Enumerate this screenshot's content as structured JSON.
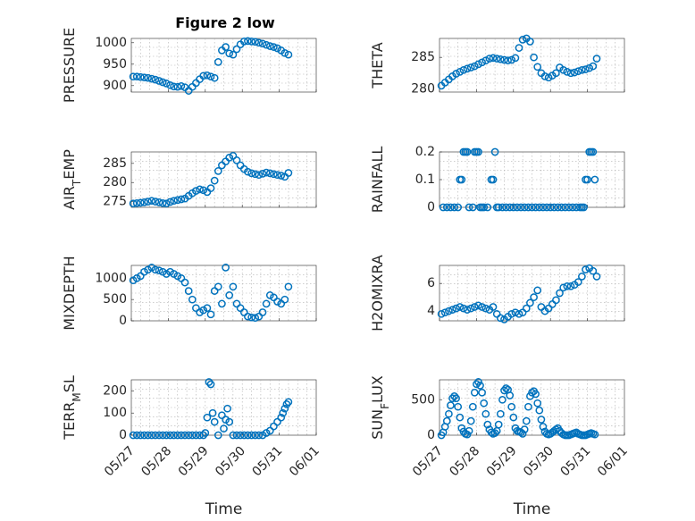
{
  "figure_title": "Figure 2 low",
  "colors": {
    "marker": "#0072BD",
    "axes": "#262626",
    "grid": "#b0b0b0"
  },
  "chart_data": [
    {
      "type": "scatter",
      "ylabel": "PRESSURE",
      "ylim": [
        885,
        1010
      ],
      "yticks": [
        900,
        950,
        1000
      ],
      "ytick_labels": [
        "900",
        "950",
        "1000"
      ],
      "xlim": [
        0,
        5
      ],
      "xtick_labels": [],
      "xlabel": "",
      "x": [
        0.05,
        0.15,
        0.25,
        0.35,
        0.45,
        0.55,
        0.65,
        0.75,
        0.85,
        0.95,
        1.05,
        1.15,
        1.25,
        1.35,
        1.45,
        1.55,
        1.65,
        1.75,
        1.85,
        1.95,
        2.05,
        2.15,
        2.25,
        2.35,
        2.45,
        2.55,
        2.65,
        2.75,
        2.85,
        2.95,
        3.05,
        3.15,
        3.25,
        3.35,
        3.45,
        3.55,
        3.65,
        3.75,
        3.85,
        3.95,
        4.05,
        4.15,
        4.25
      ],
      "y": [
        921,
        921,
        920,
        919,
        918,
        916,
        914,
        911,
        908,
        905,
        901,
        898,
        897,
        899,
        896,
        888,
        897,
        906,
        915,
        923,
        924,
        921,
        918,
        955,
        982,
        990,
        975,
        972,
        985,
        996,
        1003,
        1004,
        1003,
        1002,
        1000,
        998,
        995,
        992,
        990,
        987,
        982,
        976,
        972
      ]
    },
    {
      "type": "scatter",
      "ylabel": "THETA",
      "ylim": [
        279.5,
        288
      ],
      "yticks": [
        280,
        285
      ],
      "ytick_labels": [
        "280",
        "285"
      ],
      "xlim": [
        0,
        5
      ],
      "xtick_labels": [],
      "xlabel": "",
      "x": [
        0.05,
        0.15,
        0.25,
        0.35,
        0.45,
        0.55,
        0.65,
        0.75,
        0.85,
        0.95,
        1.05,
        1.15,
        1.25,
        1.35,
        1.45,
        1.55,
        1.65,
        1.75,
        1.85,
        1.95,
        2.05,
        2.15,
        2.25,
        2.35,
        2.45,
        2.55,
        2.65,
        2.75,
        2.85,
        2.95,
        3.05,
        3.15,
        3.25,
        3.35,
        3.45,
        3.55,
        3.65,
        3.75,
        3.85,
        3.95,
        4.05,
        4.15,
        4.25
      ],
      "y": [
        280.5,
        281.0,
        281.5,
        282.0,
        282.4,
        282.7,
        283.0,
        283.2,
        283.4,
        283.6,
        283.9,
        284.2,
        284.5,
        284.8,
        284.9,
        284.8,
        284.7,
        284.6,
        284.5,
        284.6,
        284.9,
        286.5,
        287.8,
        288.0,
        287.5,
        285.0,
        283.5,
        282.5,
        282.0,
        281.8,
        282.1,
        282.5,
        283.4,
        283.0,
        282.7,
        282.5,
        282.6,
        282.8,
        283.0,
        283.1,
        283.3,
        283.6,
        284.8
      ]
    },
    {
      "type": "scatter",
      "ylabel": "AIR_TEMP",
      "ylim": [
        273.5,
        288
      ],
      "yticks": [
        275,
        280,
        285
      ],
      "ytick_labels": [
        "275",
        "280",
        "285"
      ],
      "xlim": [
        0,
        5
      ],
      "xtick_labels": [],
      "xlabel": "",
      "x": [
        0.05,
        0.15,
        0.25,
        0.35,
        0.45,
        0.55,
        0.65,
        0.75,
        0.85,
        0.95,
        1.05,
        1.15,
        1.25,
        1.35,
        1.45,
        1.55,
        1.65,
        1.75,
        1.85,
        1.95,
        2.05,
        2.15,
        2.25,
        2.35,
        2.45,
        2.55,
        2.65,
        2.75,
        2.85,
        2.95,
        3.05,
        3.15,
        3.25,
        3.35,
        3.45,
        3.55,
        3.65,
        3.75,
        3.85,
        3.95,
        4.05,
        4.15,
        4.25
      ],
      "y": [
        274.5,
        274.6,
        274.7,
        274.8,
        275.0,
        275.2,
        275.0,
        274.8,
        274.6,
        274.5,
        274.9,
        275.2,
        275.4,
        275.6,
        275.8,
        276.5,
        277.2,
        277.8,
        278.2,
        278.0,
        277.5,
        278.5,
        280.5,
        283.0,
        284.5,
        285.5,
        286.5,
        287.0,
        285.8,
        284.5,
        283.5,
        282.8,
        282.4,
        282.2,
        282.0,
        282.3,
        282.6,
        282.4,
        282.2,
        282.0,
        281.8,
        281.5,
        282.5
      ]
    },
    {
      "type": "scatter",
      "ylabel": "RAINFALL",
      "ylim": [
        0,
        0.2
      ],
      "yticks": [
        0,
        0.1,
        0.2
      ],
      "ytick_labels": [
        "0",
        "0.1",
        "0.2"
      ],
      "xlim": [
        0,
        5
      ],
      "xtick_labels": [],
      "xlabel": "",
      "x": [
        0.1,
        0.2,
        0.3,
        0.4,
        0.5,
        0.55,
        0.6,
        0.65,
        0.7,
        0.75,
        0.8,
        0.9,
        0.95,
        1.0,
        1.05,
        1.1,
        1.15,
        1.2,
        1.3,
        1.4,
        1.45,
        1.5,
        1.55,
        1.6,
        1.7,
        1.8,
        1.9,
        2.0,
        2.1,
        2.2,
        2.3,
        2.4,
        2.5,
        2.6,
        2.7,
        2.8,
        2.9,
        3.0,
        3.1,
        3.2,
        3.3,
        3.4,
        3.5,
        3.6,
        3.7,
        3.8,
        3.85,
        3.9,
        3.95,
        4.0,
        4.05,
        4.1,
        4.15,
        4.2
      ],
      "y": [
        0,
        0,
        0,
        0,
        0,
        0.1,
        0.1,
        0.2,
        0.2,
        0.2,
        0,
        0,
        0.2,
        0.2,
        0.2,
        0,
        0,
        0,
        0,
        0.1,
        0.1,
        0.2,
        0,
        0,
        0,
        0,
        0,
        0,
        0,
        0,
        0,
        0,
        0,
        0,
        0,
        0,
        0,
        0,
        0,
        0,
        0,
        0,
        0,
        0,
        0,
        0,
        0,
        0,
        0.1,
        0.1,
        0.2,
        0.2,
        0.2,
        0.1
      ]
    },
    {
      "type": "scatter",
      "ylabel": "MIXDEPTH",
      "ylim": [
        0,
        1300
      ],
      "yticks": [
        0,
        500,
        1000
      ],
      "ytick_labels": [
        "0",
        "500",
        "1000"
      ],
      "xlim": [
        0,
        5
      ],
      "xtick_labels": [],
      "xlabel": "",
      "x": [
        0.05,
        0.15,
        0.25,
        0.35,
        0.45,
        0.55,
        0.65,
        0.75,
        0.85,
        0.95,
        1.05,
        1.15,
        1.25,
        1.35,
        1.45,
        1.55,
        1.65,
        1.75,
        1.85,
        1.95,
        2.05,
        2.15,
        2.25,
        2.35,
        2.45,
        2.55,
        2.65,
        2.75,
        2.85,
        2.95,
        3.05,
        3.15,
        3.25,
        3.35,
        3.45,
        3.55,
        3.65,
        3.75,
        3.85,
        3.95,
        4.05,
        4.15,
        4.25
      ],
      "y": [
        950,
        1000,
        1050,
        1150,
        1200,
        1250,
        1200,
        1180,
        1150,
        1100,
        1150,
        1100,
        1050,
        1000,
        900,
        700,
        500,
        300,
        200,
        250,
        300,
        150,
        700,
        800,
        400,
        1250,
        600,
        800,
        400,
        300,
        200,
        100,
        80,
        70,
        100,
        200,
        400,
        600,
        550,
        450,
        400,
        500,
        800
      ]
    },
    {
      "type": "scatter",
      "ylabel": "H2OMIXRA",
      "ylim": [
        3.3,
        7.3
      ],
      "yticks": [
        4,
        6
      ],
      "ytick_labels": [
        "4",
        "6"
      ],
      "xlim": [
        0,
        5
      ],
      "xtick_labels": [],
      "xlabel": "",
      "x": [
        0.05,
        0.15,
        0.25,
        0.35,
        0.45,
        0.55,
        0.65,
        0.75,
        0.85,
        0.95,
        1.05,
        1.15,
        1.25,
        1.35,
        1.45,
        1.55,
        1.65,
        1.75,
        1.85,
        1.95,
        2.05,
        2.15,
        2.25,
        2.35,
        2.45,
        2.55,
        2.65,
        2.75,
        2.85,
        2.95,
        3.05,
        3.15,
        3.25,
        3.35,
        3.45,
        3.55,
        3.65,
        3.75,
        3.85,
        3.95,
        4.05,
        4.15,
        4.25
      ],
      "y": [
        3.8,
        3.9,
        4.0,
        4.1,
        4.2,
        4.3,
        4.2,
        4.1,
        4.2,
        4.3,
        4.4,
        4.3,
        4.2,
        4.1,
        4.3,
        3.8,
        3.5,
        3.4,
        3.6,
        3.8,
        3.9,
        3.8,
        3.9,
        4.2,
        4.6,
        5.0,
        5.5,
        4.3,
        4.0,
        4.2,
        4.5,
        4.8,
        5.3,
        5.7,
        5.8,
        5.8,
        5.9,
        6.1,
        6.5,
        7.0,
        7.1,
        6.9,
        6.5
      ]
    },
    {
      "type": "scatter",
      "ylabel": "TERR_MSL",
      "ylim": [
        0,
        250
      ],
      "yticks": [
        0,
        100,
        200
      ],
      "ytick_labels": [
        "0",
        "100",
        "200"
      ],
      "xlim": [
        0,
        5
      ],
      "xtick_labels": [
        "05/27",
        "05/28",
        "05/29",
        "05/30",
        "05/31",
        "06/01"
      ],
      "xlabel": "Time",
      "x": [
        0.05,
        0.15,
        0.25,
        0.35,
        0.45,
        0.55,
        0.65,
        0.75,
        0.85,
        0.95,
        1.05,
        1.15,
        1.25,
        1.35,
        1.45,
        1.55,
        1.65,
        1.75,
        1.85,
        1.95,
        2.0,
        2.05,
        2.1,
        2.15,
        2.2,
        2.25,
        2.35,
        2.45,
        2.5,
        2.55,
        2.6,
        2.65,
        2.75,
        2.85,
        2.95,
        3.05,
        3.15,
        3.25,
        3.35,
        3.45,
        3.55,
        3.65,
        3.75,
        3.85,
        3.95,
        4.05,
        4.1,
        4.15,
        4.2,
        4.25
      ],
      "y": [
        0,
        0,
        0,
        0,
        0,
        0,
        0,
        0,
        0,
        0,
        0,
        0,
        0,
        0,
        0,
        0,
        0,
        0,
        0,
        0,
        10,
        80,
        240,
        230,
        100,
        60,
        0,
        90,
        30,
        70,
        120,
        60,
        0,
        0,
        0,
        0,
        0,
        0,
        0,
        0,
        0,
        10,
        20,
        40,
        60,
        80,
        100,
        120,
        140,
        150
      ]
    },
    {
      "type": "scatter",
      "ylabel": "SUN_FLUX",
      "ylim": [
        0,
        780
      ],
      "yticks": [
        0,
        500
      ],
      "ytick_labels": [
        "0",
        "500"
      ],
      "xlim": [
        0,
        5
      ],
      "xtick_labels": [
        "05/27",
        "05/28",
        "05/29",
        "05/30",
        "05/31",
        "06/01"
      ],
      "xlabel": "Time",
      "x": [
        0.05,
        0.1,
        0.15,
        0.2,
        0.25,
        0.3,
        0.35,
        0.4,
        0.45,
        0.5,
        0.55,
        0.6,
        0.65,
        0.7,
        0.75,
        0.8,
        0.85,
        0.9,
        0.95,
        1.0,
        1.05,
        1.1,
        1.15,
        1.2,
        1.25,
        1.3,
        1.35,
        1.4,
        1.45,
        1.5,
        1.55,
        1.6,
        1.65,
        1.7,
        1.75,
        1.8,
        1.85,
        1.9,
        1.95,
        2.0,
        2.05,
        2.1,
        2.15,
        2.2,
        2.25,
        2.3,
        2.35,
        2.4,
        2.45,
        2.5,
        2.55,
        2.6,
        2.65,
        2.7,
        2.75,
        2.8,
        2.85,
        2.9,
        2.95,
        3.0,
        3.05,
        3.1,
        3.15,
        3.2,
        3.25,
        3.3,
        3.35,
        3.4,
        3.45,
        3.5,
        3.55,
        3.6,
        3.65,
        3.7,
        3.75,
        3.8,
        3.85,
        3.9,
        3.95,
        4.0,
        4.05,
        4.1,
        4.15,
        4.2
      ],
      "y": [
        0,
        40,
        120,
        200,
        300,
        420,
        520,
        550,
        520,
        400,
        250,
        100,
        50,
        20,
        10,
        60,
        200,
        400,
        600,
        720,
        750,
        700,
        600,
        450,
        300,
        150,
        80,
        40,
        20,
        30,
        60,
        150,
        300,
        500,
        630,
        660,
        640,
        560,
        400,
        250,
        100,
        60,
        50,
        40,
        20,
        80,
        200,
        400,
        550,
        600,
        620,
        580,
        450,
        350,
        220,
        120,
        50,
        20,
        10,
        20,
        40,
        60,
        80,
        100,
        60,
        30,
        10,
        0,
        0,
        0,
        10,
        20,
        30,
        40,
        20,
        10,
        0,
        0,
        0,
        10,
        20,
        30,
        20,
        10
      ]
    }
  ]
}
